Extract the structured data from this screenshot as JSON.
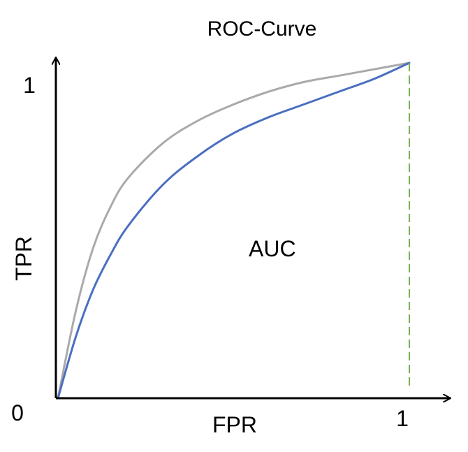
{
  "chart_data": {
    "type": "line",
    "title": "ROC-Curve",
    "xlabel": "FPR",
    "ylabel": "TPR",
    "xlim": [
      0,
      1
    ],
    "ylim": [
      0,
      1.05
    ],
    "x_ticks": [
      {
        "value": 0,
        "label": "0"
      },
      {
        "value": 1,
        "label": "1"
      }
    ],
    "y_ticks": [
      {
        "value": 1,
        "label": "1"
      }
    ],
    "grid": false,
    "annotations": [
      {
        "text": "AUC",
        "x": 0.6,
        "y": 0.47
      }
    ],
    "series": [
      {
        "color": "#aaaaaa",
        "x": [
          0,
          0.05,
          0.1,
          0.15,
          0.2,
          0.3,
          0.4,
          0.5,
          0.6,
          0.7,
          0.8,
          0.9,
          1.0
        ],
        "y": [
          0,
          0.27,
          0.47,
          0.6,
          0.69,
          0.8,
          0.87,
          0.92,
          0.96,
          0.99,
          1.01,
          1.03,
          1.05
        ]
      },
      {
        "color": "#4a6fc0",
        "x": [
          0,
          0.05,
          0.1,
          0.15,
          0.2,
          0.3,
          0.4,
          0.5,
          0.6,
          0.7,
          0.8,
          0.9,
          1.0
        ],
        "y": [
          0,
          0.19,
          0.34,
          0.45,
          0.54,
          0.67,
          0.76,
          0.83,
          0.88,
          0.92,
          0.96,
          1.0,
          1.05
        ]
      }
    ],
    "reference_lines": [
      {
        "orientation": "vertical",
        "x": 1,
        "style": "dashed",
        "color": "#77b255"
      }
    ],
    "axis_color": "#000000"
  }
}
